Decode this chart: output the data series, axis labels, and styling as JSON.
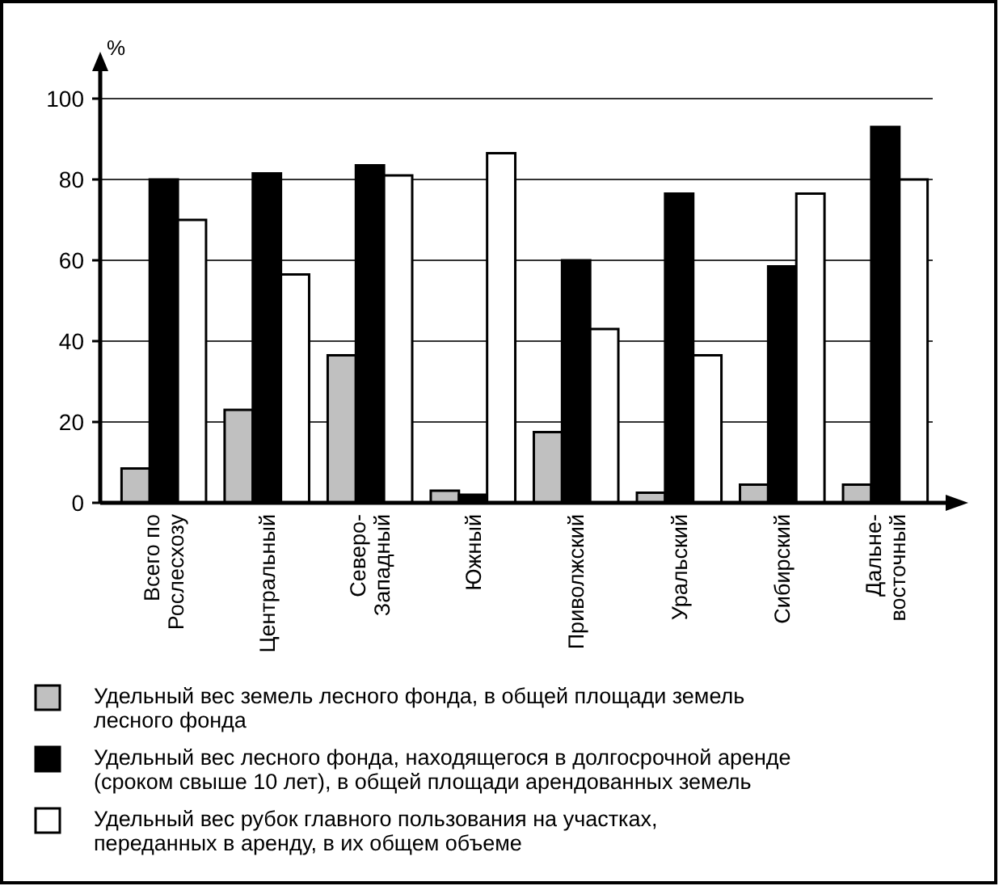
{
  "chart_data": {
    "type": "bar",
    "ylabel": "%",
    "categories": [
      "Всего по Рослесхозу",
      "Центральный",
      "Северо-Западный",
      "Южный",
      "Приволжский",
      "Уральский",
      "Сибирский",
      "Дальне-восточный"
    ],
    "series": [
      {
        "name": "Удельный вес земель лесного фонда, в общей площади земель лесного фонда",
        "color": "#c0c0c0",
        "values": [
          8.5,
          23,
          36.5,
          3,
          17.5,
          2.5,
          4.5,
          4.5
        ]
      },
      {
        "name": "Удельный вес лесного фонда, находящегося в долгосрочной аренде (сроком свыше 10 лет), в общей площади арендованных земель",
        "color": "#000000",
        "values": [
          80,
          81.5,
          83.5,
          2,
          60,
          76.5,
          58.5,
          93
        ]
      },
      {
        "name": "Удельный вес рубок главного пользования на участках, переданных в аренду, в их общем объеме",
        "color": "#ffffff",
        "values": [
          70,
          56.5,
          81,
          86.5,
          43,
          36.5,
          76.5,
          80
        ]
      }
    ],
    "ylim": [
      0,
      110
    ],
    "yticks": [
      0,
      20,
      40,
      60,
      80,
      100
    ],
    "grid": "y",
    "legend": "bottom"
  }
}
